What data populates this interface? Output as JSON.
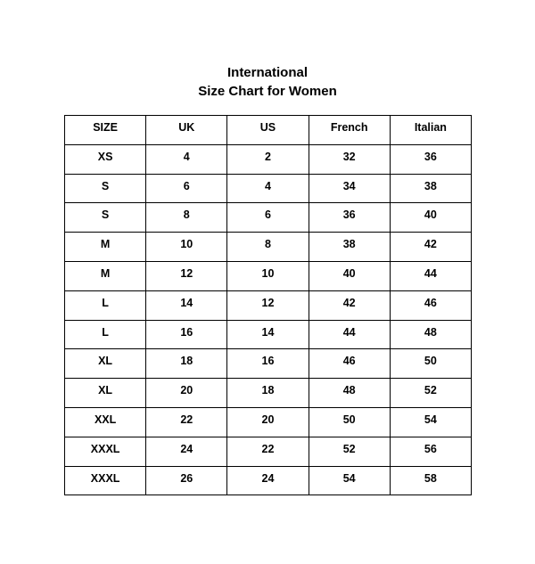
{
  "title": {
    "line1": "International",
    "line2": "Size Chart for Women"
  },
  "table": {
    "headers": [
      "SIZE",
      "UK",
      "US",
      "French",
      "Italian"
    ],
    "rows": [
      [
        "XS",
        "4",
        "2",
        "32",
        "36"
      ],
      [
        "S",
        "6",
        "4",
        "34",
        "38"
      ],
      [
        "S",
        "8",
        "6",
        "36",
        "40"
      ],
      [
        "M",
        "10",
        "8",
        "38",
        "42"
      ],
      [
        "M",
        "12",
        "10",
        "40",
        "44"
      ],
      [
        "L",
        "14",
        "12",
        "42",
        "46"
      ],
      [
        "L",
        "16",
        "14",
        "44",
        "48"
      ],
      [
        "XL",
        "18",
        "16",
        "46",
        "50"
      ],
      [
        "XL",
        "20",
        "18",
        "48",
        "52"
      ],
      [
        "XXL",
        "22",
        "20",
        "50",
        "54"
      ],
      [
        "XXXL",
        "24",
        "22",
        "52",
        "56"
      ],
      [
        "XXXL",
        "26",
        "24",
        "54",
        "58"
      ]
    ]
  }
}
